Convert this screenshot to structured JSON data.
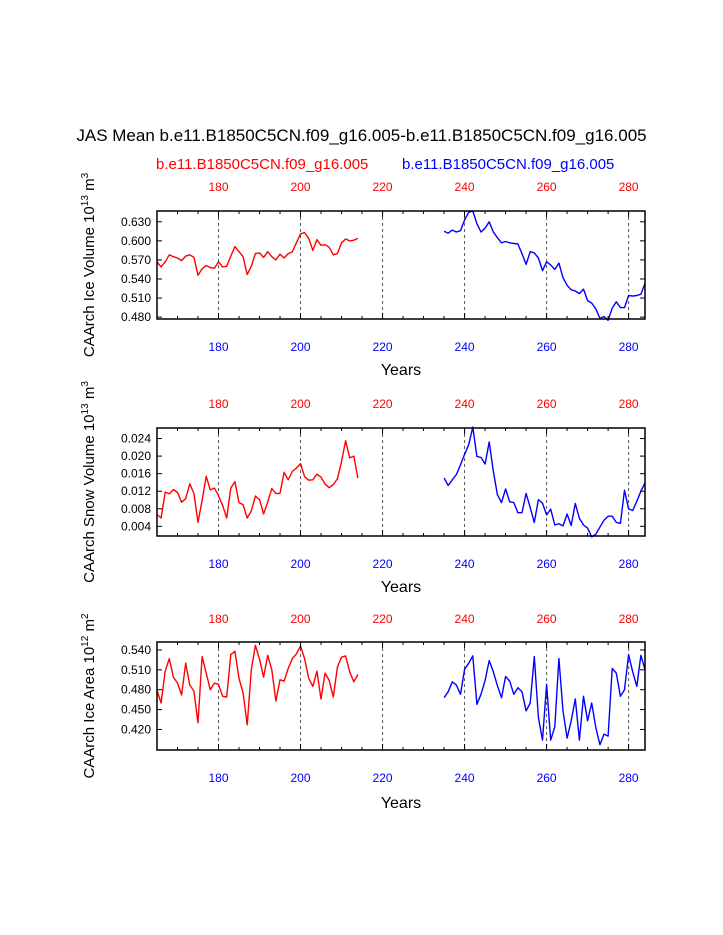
{
  "title": "JAS Mean b.e11.B1850C5CN.f09_g16.005-b.e11.B1850C5CN.f09_g16.005",
  "case_red": "b.e11.B1850C5CN.f09_g16.005",
  "case_blue": "b.e11.B1850C5CN.f09_g16.005",
  "colors": {
    "red": "#ff0000",
    "blue": "#0000ff",
    "axis": "#000000",
    "grid": "#555555"
  },
  "chart_data": [
    {
      "type": "line",
      "ylabel_parts": [
        "CAArch Ice Volume 10",
        "13",
        " m",
        "3"
      ],
      "xlabel": "Years",
      "xlim": [
        165,
        284
      ],
      "ylim": [
        0.477,
        0.647
      ],
      "yticks": [
        "0.480",
        "0.510",
        "0.540",
        "0.570",
        "0.600",
        "0.630"
      ],
      "top_xticks": [
        "180",
        "200",
        "220",
        "240",
        "260",
        "280"
      ],
      "bottom_xticks": [
        "180",
        "200",
        "220",
        "240",
        "260",
        "280"
      ],
      "grid_x": [
        180,
        200,
        220,
        240,
        260,
        280
      ],
      "series": [
        {
          "color": "red",
          "x_start": 165,
          "values": [
            0.567,
            0.559,
            0.567,
            0.578,
            0.575,
            0.573,
            0.569,
            0.576,
            0.578,
            0.574,
            0.546,
            0.556,
            0.561,
            0.558,
            0.557,
            0.567,
            0.559,
            0.56,
            0.576,
            0.591,
            0.583,
            0.575,
            0.547,
            0.56,
            0.58,
            0.581,
            0.574,
            0.583,
            0.575,
            0.57,
            0.579,
            0.573,
            0.58,
            0.583,
            0.597,
            0.611,
            0.613,
            0.604,
            0.585,
            0.602,
            0.593,
            0.594,
            0.59,
            0.578,
            0.58,
            0.597,
            0.603,
            0.6,
            0.601,
            0.604
          ]
        },
        {
          "color": "blue",
          "x_start": 235,
          "values": [
            0.615,
            0.612,
            0.617,
            0.614,
            0.616,
            0.633,
            0.645,
            0.647,
            0.627,
            0.614,
            0.62,
            0.63,
            0.614,
            0.605,
            0.597,
            0.599,
            0.597,
            0.596,
            0.595,
            0.58,
            0.563,
            0.583,
            0.581,
            0.573,
            0.553,
            0.567,
            0.562,
            0.555,
            0.565,
            0.542,
            0.53,
            0.523,
            0.521,
            0.517,
            0.524,
            0.506,
            0.502,
            0.493,
            0.478,
            0.481,
            0.475,
            0.494,
            0.504,
            0.495,
            0.495,
            0.514,
            0.513,
            0.514,
            0.516,
            0.533
          ]
        }
      ]
    },
    {
      "type": "line",
      "ylabel_parts": [
        "CAArch Snow Volume 10",
        "13",
        " m",
        "3"
      ],
      "xlabel": "Years",
      "xlim": [
        165,
        284
      ],
      "ylim": [
        0.0018,
        0.0264
      ],
      "yticks": [
        "0.004",
        "0.008",
        "0.012",
        "0.016",
        "0.020",
        "0.024"
      ],
      "top_xticks": [
        "180",
        "200",
        "220",
        "240",
        "260",
        "280"
      ],
      "bottom_xticks": [
        "180",
        "200",
        "220",
        "240",
        "260",
        "280"
      ],
      "grid_x": [
        180,
        200,
        220,
        240,
        260,
        280
      ],
      "series": [
        {
          "color": "red",
          "x_start": 165,
          "values": [
            0.0067,
            0.0059,
            0.0118,
            0.0114,
            0.0124,
            0.0117,
            0.0095,
            0.0103,
            0.0137,
            0.0115,
            0.0049,
            0.0099,
            0.0154,
            0.0123,
            0.0127,
            0.011,
            0.0088,
            0.0059,
            0.0127,
            0.0142,
            0.0094,
            0.0089,
            0.0059,
            0.0075,
            0.0109,
            0.0101,
            0.0068,
            0.0095,
            0.0126,
            0.0115,
            0.0115,
            0.0163,
            0.0146,
            0.0165,
            0.0173,
            0.0183,
            0.0153,
            0.0145,
            0.0146,
            0.0159,
            0.0152,
            0.0136,
            0.0128,
            0.0135,
            0.0148,
            0.0187,
            0.0235,
            0.0196,
            0.02,
            0.015
          ]
        },
        {
          "color": "blue",
          "x_start": 235,
          "values": [
            0.015,
            0.0133,
            0.0146,
            0.0158,
            0.018,
            0.0204,
            0.0226,
            0.0266,
            0.0199,
            0.0197,
            0.0182,
            0.0232,
            0.0166,
            0.0112,
            0.0094,
            0.0125,
            0.0096,
            0.0094,
            0.0071,
            0.0071,
            0.0115,
            0.0083,
            0.0049,
            0.0101,
            0.0093,
            0.0066,
            0.0079,
            0.0043,
            0.0046,
            0.0041,
            0.0068,
            0.0042,
            0.0092,
            0.0058,
            0.0043,
            0.0036,
            0.0016,
            0.0022,
            0.0038,
            0.0054,
            0.0063,
            0.0063,
            0.0049,
            0.0047,
            0.0122,
            0.008,
            0.0076,
            0.0097,
            0.012,
            0.0139
          ]
        }
      ]
    },
    {
      "type": "line",
      "ylabel_parts": [
        "CAArch Ice Area 10",
        "12",
        " m",
        "2"
      ],
      "xlabel": "Years",
      "xlim": [
        165,
        284
      ],
      "ylim": [
        0.389,
        0.552
      ],
      "yticks": [
        "0.420",
        "0.450",
        "0.480",
        "0.510",
        "0.540"
      ],
      "top_xticks": [
        "180",
        "200",
        "220",
        "240",
        "260",
        "280"
      ],
      "bottom_xticks": [
        "180",
        "200",
        "220",
        "240",
        "260",
        "280"
      ],
      "grid_x": [
        180,
        200,
        220,
        240,
        260,
        280
      ],
      "series": [
        {
          "color": "red",
          "x_start": 165,
          "values": [
            0.479,
            0.46,
            0.508,
            0.527,
            0.499,
            0.49,
            0.472,
            0.52,
            0.487,
            0.478,
            0.43,
            0.53,
            0.505,
            0.48,
            0.49,
            0.488,
            0.47,
            0.469,
            0.533,
            0.538,
            0.497,
            0.475,
            0.427,
            0.51,
            0.547,
            0.526,
            0.499,
            0.532,
            0.51,
            0.463,
            0.495,
            0.493,
            0.512,
            0.527,
            0.534,
            0.546,
            0.527,
            0.497,
            0.485,
            0.508,
            0.466,
            0.505,
            0.494,
            0.469,
            0.514,
            0.529,
            0.531,
            0.507,
            0.492,
            0.503
          ]
        },
        {
          "color": "blue",
          "x_start": 235,
          "values": [
            0.468,
            0.477,
            0.492,
            0.487,
            0.473,
            0.511,
            0.52,
            0.531,
            0.458,
            0.473,
            0.494,
            0.524,
            0.507,
            0.486,
            0.468,
            0.5,
            0.493,
            0.473,
            0.483,
            0.477,
            0.448,
            0.46,
            0.53,
            0.438,
            0.404,
            0.488,
            0.404,
            0.424,
            0.527,
            0.448,
            0.407,
            0.433,
            0.466,
            0.404,
            0.47,
            0.433,
            0.46,
            0.423,
            0.397,
            0.413,
            0.41,
            0.512,
            0.505,
            0.47,
            0.48,
            0.533,
            0.507,
            0.485,
            0.532,
            0.51
          ]
        }
      ]
    }
  ]
}
